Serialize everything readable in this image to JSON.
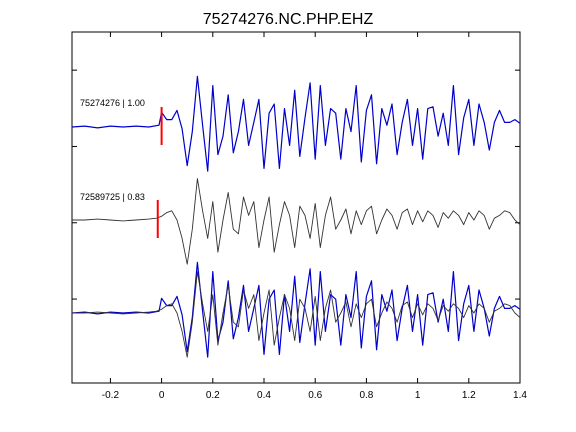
{
  "chart_data": {
    "type": "line",
    "title": "75274276.NC.PHP.EHZ",
    "xlabel": "",
    "ylabel": "",
    "xlim": [
      -0.35,
      1.4
    ],
    "x_ticks": [
      -0.2,
      0,
      0.2,
      0.4,
      0.6,
      0.8,
      1,
      1.2,
      1.4
    ],
    "x_tick_labels": [
      "-0.2",
      "0",
      "0.2",
      "0.4",
      "0.6",
      "0.8",
      "1",
      "1.2",
      "1.4"
    ],
    "y_tick_count": 4,
    "grid": false,
    "pick_time": 0,
    "colors": {
      "reference": "#0000cc",
      "correlated": "#333333",
      "pick": "#ff0000"
    },
    "series": [
      {
        "name": "75274276 | 1.00",
        "color": "#0000cc",
        "panel": "top",
        "x": [
          -0.35,
          -0.3,
          -0.25,
          -0.2,
          -0.15,
          -0.1,
          -0.05,
          -0.01,
          0,
          0.02,
          0.04,
          0.06,
          0.08,
          0.1,
          0.12,
          0.14,
          0.16,
          0.18,
          0.2,
          0.22,
          0.24,
          0.26,
          0.28,
          0.3,
          0.32,
          0.34,
          0.36,
          0.38,
          0.4,
          0.42,
          0.44,
          0.46,
          0.48,
          0.5,
          0.52,
          0.54,
          0.56,
          0.58,
          0.6,
          0.62,
          0.64,
          0.66,
          0.68,
          0.7,
          0.72,
          0.74,
          0.76,
          0.78,
          0.8,
          0.82,
          0.84,
          0.86,
          0.88,
          0.9,
          0.92,
          0.94,
          0.96,
          0.98,
          1,
          1.02,
          1.04,
          1.06,
          1.08,
          1.1,
          1.12,
          1.14,
          1.16,
          1.18,
          1.2,
          1.22,
          1.24,
          1.26,
          1.28,
          1.3,
          1.32,
          1.34,
          1.36,
          1.38,
          1.4
        ],
        "y": [
          0,
          0.01,
          -0.01,
          0.01,
          0,
          0.01,
          0,
          0.02,
          0.16,
          0.08,
          0.08,
          0.18,
          -0.02,
          -0.42,
          -0.05,
          0.55,
          0.02,
          -0.48,
          0.45,
          -0.3,
          -0.1,
          0.35,
          -0.28,
          -0.05,
          0.3,
          -0.2,
          0.05,
          0.3,
          -0.45,
          0.15,
          0.25,
          -0.45,
          0.2,
          -0.2,
          0.4,
          -0.32,
          0.1,
          0.48,
          -0.35,
          0.45,
          -0.2,
          0.2,
          0.15,
          -0.35,
          0.2,
          -0.05,
          0.45,
          -0.38,
          0.18,
          0.35,
          -0.4,
          0.2,
          0.02,
          0.25,
          -0.3,
          0.05,
          0.3,
          -0.2,
          0.2,
          -0.35,
          0.2,
          0.22,
          -0.1,
          0.15,
          -0.2,
          0.45,
          -0.3,
          0.1,
          0.3,
          -0.2,
          0.25,
          0.05,
          -0.25,
          0.05,
          0.18,
          0.05,
          0.05,
          0.08,
          0.04
        ]
      },
      {
        "name": "72589725 | 0.83",
        "color": "#333333",
        "panel": "middle",
        "x": [
          -0.35,
          -0.3,
          -0.25,
          -0.2,
          -0.15,
          -0.1,
          -0.05,
          -0.02,
          0,
          0.02,
          0.04,
          0.06,
          0.08,
          0.1,
          0.12,
          0.14,
          0.16,
          0.18,
          0.2,
          0.22,
          0.24,
          0.26,
          0.28,
          0.3,
          0.32,
          0.34,
          0.36,
          0.38,
          0.4,
          0.42,
          0.44,
          0.46,
          0.48,
          0.5,
          0.52,
          0.54,
          0.56,
          0.58,
          0.6,
          0.62,
          0.64,
          0.66,
          0.68,
          0.7,
          0.72,
          0.74,
          0.76,
          0.78,
          0.8,
          0.82,
          0.84,
          0.86,
          0.88,
          0.9,
          0.92,
          0.94,
          0.96,
          0.98,
          1,
          1.02,
          1.04,
          1.06,
          1.08,
          1.1,
          1.12,
          1.14,
          1.16,
          1.18,
          1.2,
          1.22,
          1.24,
          1.26,
          1.28,
          1.3,
          1.32,
          1.34,
          1.36,
          1.38,
          1.4
        ],
        "y": [
          0,
          0,
          0.01,
          0,
          -0.01,
          0,
          0.01,
          0.02,
          0.04,
          0.08,
          0.1,
          0,
          -0.2,
          -0.48,
          -0.1,
          0.45,
          0.1,
          -0.2,
          0.2,
          -0.35,
          0,
          0.3,
          -0.1,
          -0.15,
          0.25,
          0.05,
          0.2,
          -0.3,
          0,
          0.25,
          -0.35,
          -0.05,
          0.2,
          0.05,
          -0.3,
          0.15,
          0.05,
          -0.2,
          0.18,
          -0.3,
          0.05,
          0.25,
          -0.1,
          0,
          0.12,
          -0.15,
          0.1,
          -0.05,
          0.1,
          0.15,
          -0.15,
          0,
          0.12,
          0.05,
          -0.1,
          0.08,
          0.12,
          -0.05,
          0.1,
          -0.02,
          0.1,
          0.05,
          -0.08,
          0.08,
          0.02,
          0.1,
          0.05,
          -0.05,
          0.08,
          0,
          0.1,
          0.05,
          -0.1,
          0.02,
          0.05,
          0.1,
          0.08,
          0,
          -0.05
        ]
      },
      {
        "name": "",
        "color": "#0000cc",
        "panel": "bottom",
        "x": [
          -0.35,
          -0.3,
          -0.25,
          -0.2,
          -0.15,
          -0.1,
          -0.05,
          -0.01,
          0,
          0.02,
          0.04,
          0.06,
          0.08,
          0.1,
          0.12,
          0.14,
          0.16,
          0.18,
          0.2,
          0.22,
          0.24,
          0.26,
          0.28,
          0.3,
          0.32,
          0.34,
          0.36,
          0.38,
          0.4,
          0.42,
          0.44,
          0.46,
          0.48,
          0.5,
          0.52,
          0.54,
          0.56,
          0.58,
          0.6,
          0.62,
          0.64,
          0.66,
          0.68,
          0.7,
          0.72,
          0.74,
          0.76,
          0.78,
          0.8,
          0.82,
          0.84,
          0.86,
          0.88,
          0.9,
          0.92,
          0.94,
          0.96,
          0.98,
          1,
          1.02,
          1.04,
          1.06,
          1.08,
          1.1,
          1.12,
          1.14,
          1.16,
          1.18,
          1.2,
          1.22,
          1.24,
          1.26,
          1.28,
          1.3,
          1.32,
          1.34,
          1.36,
          1.38,
          1.4
        ],
        "y": [
          0,
          0.01,
          -0.01,
          0.01,
          0,
          0.01,
          0,
          0.02,
          0.16,
          0.08,
          0.08,
          0.18,
          -0.02,
          -0.42,
          -0.05,
          0.55,
          0.02,
          -0.48,
          0.45,
          -0.3,
          -0.1,
          0.35,
          -0.28,
          -0.05,
          0.3,
          -0.2,
          0.05,
          0.3,
          -0.45,
          0.15,
          0.25,
          -0.45,
          0.2,
          -0.2,
          0.4,
          -0.32,
          0.1,
          0.48,
          -0.35,
          0.45,
          -0.2,
          0.2,
          0.15,
          -0.35,
          0.2,
          -0.05,
          0.45,
          -0.38,
          0.18,
          0.35,
          -0.4,
          0.2,
          0.02,
          0.25,
          -0.3,
          0.05,
          0.3,
          -0.2,
          0.2,
          -0.35,
          0.2,
          0.22,
          -0.1,
          0.15,
          -0.2,
          0.45,
          -0.3,
          0.1,
          0.3,
          -0.2,
          0.25,
          0.05,
          -0.25,
          0.05,
          0.18,
          0.05,
          0.05,
          0.08,
          0.04
        ]
      },
      {
        "name": "",
        "color": "#333333",
        "panel": "bottom",
        "x": [
          -0.35,
          -0.3,
          -0.25,
          -0.2,
          -0.15,
          -0.1,
          -0.05,
          -0.02,
          0,
          0.02,
          0.04,
          0.06,
          0.08,
          0.1,
          0.12,
          0.14,
          0.16,
          0.18,
          0.2,
          0.22,
          0.24,
          0.26,
          0.28,
          0.3,
          0.32,
          0.34,
          0.36,
          0.38,
          0.4,
          0.42,
          0.44,
          0.46,
          0.48,
          0.5,
          0.52,
          0.54,
          0.56,
          0.58,
          0.6,
          0.62,
          0.64,
          0.66,
          0.68,
          0.7,
          0.72,
          0.74,
          0.76,
          0.78,
          0.8,
          0.82,
          0.84,
          0.86,
          0.88,
          0.9,
          0.92,
          0.94,
          0.96,
          0.98,
          1,
          1.02,
          1.04,
          1.06,
          1.08,
          1.1,
          1.12,
          1.14,
          1.16,
          1.18,
          1.2,
          1.22,
          1.24,
          1.26,
          1.28,
          1.3,
          1.32,
          1.34,
          1.36,
          1.38,
          1.4
        ],
        "y": [
          0,
          0,
          0.01,
          0,
          -0.01,
          0,
          0.01,
          0.02,
          0.04,
          0.08,
          0.1,
          0,
          -0.2,
          -0.48,
          -0.1,
          0.45,
          0.1,
          -0.2,
          0.2,
          -0.35,
          0,
          0.3,
          -0.1,
          -0.15,
          0.25,
          0.05,
          0.2,
          -0.3,
          0,
          0.25,
          -0.35,
          -0.05,
          0.2,
          0.05,
          -0.3,
          0.15,
          0.05,
          -0.2,
          0.18,
          -0.3,
          0.05,
          0.25,
          -0.1,
          0,
          0.12,
          -0.15,
          0.1,
          -0.05,
          0.1,
          0.15,
          -0.15,
          0,
          0.12,
          0.05,
          -0.1,
          0.08,
          0.12,
          -0.05,
          0.1,
          -0.02,
          0.1,
          0.05,
          -0.08,
          0.08,
          0.02,
          0.1,
          0.05,
          -0.05,
          0.08,
          0,
          0.1,
          0.05,
          -0.1,
          0.02,
          0.05,
          0.1,
          0.08,
          0,
          -0.05
        ]
      }
    ]
  }
}
